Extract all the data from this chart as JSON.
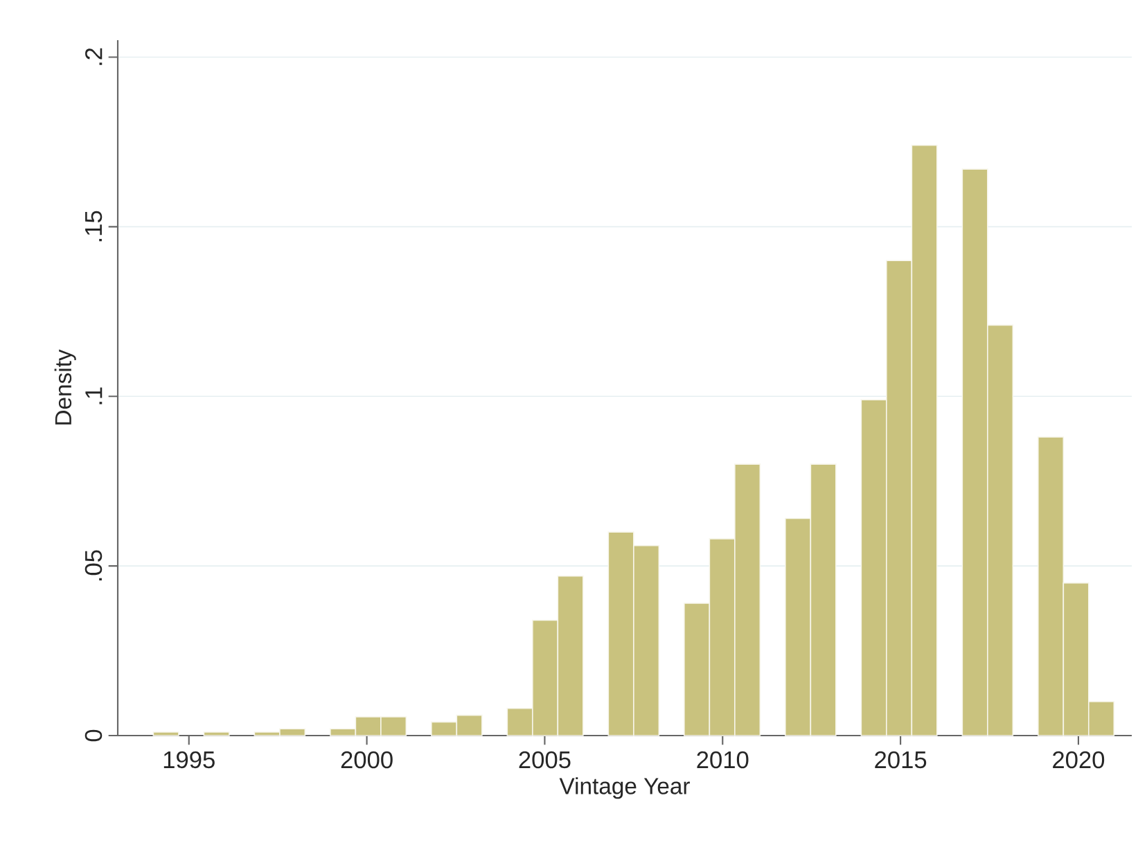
{
  "chart_data": {
    "type": "histogram",
    "xlabel": "Vintage Year",
    "ylabel": "Density",
    "bins": [
      1994,
      1994.711,
      1995.421,
      1996.132,
      1996.842,
      1997.553,
      1998.263,
      1998.974,
      1999.684,
      2000.395,
      2001.105,
      2001.816,
      2002.526,
      2003.237,
      2003.947,
      2004.658,
      2005.368,
      2006.079,
      2006.789,
      2007.5,
      2008.211,
      2008.921,
      2009.632,
      2010.342,
      2011.053,
      2011.763,
      2012.474,
      2013.184,
      2013.895,
      2014.605,
      2015.316,
      2016.026,
      2016.737,
      2017.447,
      2018.158,
      2018.868,
      2019.579,
      2020.289,
      2021
    ],
    "values": [
      0.001,
      0,
      0.001,
      0,
      0.001,
      0.002,
      0,
      0.002,
      0.0055,
      0.0055,
      0,
      0.004,
      0.006,
      0,
      0.008,
      0.034,
      0.047,
      0,
      0.06,
      0.056,
      0,
      0.039,
      0.058,
      0.08,
      0,
      0.064,
      0.08,
      0,
      0.099,
      0.14,
      0.174,
      0,
      0.167,
      0.121,
      0,
      0.088,
      0.045,
      0.01
    ],
    "color": "#c9c27e",
    "xlim": [
      1993,
      2021.5
    ],
    "xticks": [
      1995,
      2000,
      2005,
      2010,
      2015,
      2020
    ],
    "ylim": [
      0,
      0.205
    ],
    "yticks": [
      0,
      {
        "value": 0.05,
        "label": ".05"
      },
      {
        "value": 0.1,
        "label": ".1"
      },
      {
        "value": 0.15,
        "label": ".15"
      },
      {
        "value": 0.2,
        "label": ".2"
      }
    ],
    "grid": "y"
  }
}
